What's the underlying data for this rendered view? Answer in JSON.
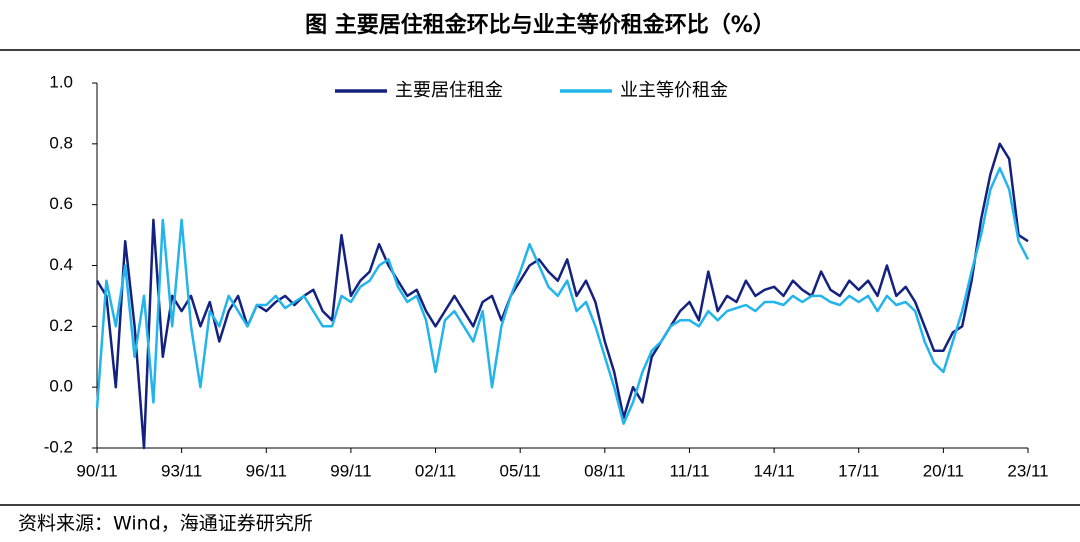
{
  "chart_data": {
    "type": "line",
    "title": "图 主要居住租金环比与业主等价租金环比（%）",
    "source": "资料来源：Wind，海通证券研究所",
    "categories": [
      "90/11",
      null,
      null,
      null,
      null,
      null,
      null,
      null,
      null,
      "93/11",
      null,
      null,
      null,
      null,
      null,
      null,
      null,
      null,
      "96/11",
      null,
      null,
      null,
      null,
      null,
      null,
      null,
      null,
      "99/11",
      null,
      null,
      null,
      null,
      null,
      null,
      null,
      null,
      "02/11",
      null,
      null,
      null,
      null,
      null,
      null,
      null,
      null,
      "05/11",
      null,
      null,
      null,
      null,
      null,
      null,
      null,
      null,
      "08/11",
      null,
      null,
      null,
      null,
      null,
      null,
      null,
      null,
      "11/11",
      null,
      null,
      null,
      null,
      null,
      null,
      null,
      null,
      "14/11",
      null,
      null,
      null,
      null,
      null,
      null,
      null,
      null,
      "17/11",
      null,
      null,
      null,
      null,
      null,
      null,
      null,
      null,
      "20/11",
      null,
      null,
      null,
      null,
      null,
      null,
      null,
      null,
      "23/11"
    ],
    "series": [
      {
        "name": "主要居住租金",
        "color": "#15217f",
        "values": [
          0.35,
          0.3,
          0.0,
          0.48,
          0.2,
          -0.2,
          0.55,
          0.1,
          0.3,
          0.25,
          0.3,
          0.2,
          0.28,
          0.15,
          0.25,
          0.3,
          0.2,
          0.27,
          0.25,
          0.28,
          0.3,
          0.27,
          0.3,
          0.32,
          0.25,
          0.22,
          0.5,
          0.3,
          0.35,
          0.38,
          0.47,
          0.4,
          0.35,
          0.3,
          0.32,
          0.25,
          0.2,
          0.25,
          0.3,
          0.25,
          0.2,
          0.28,
          0.3,
          0.22,
          0.3,
          0.35,
          0.4,
          0.42,
          0.38,
          0.35,
          0.42,
          0.3,
          0.35,
          0.28,
          0.15,
          0.05,
          -0.1,
          0.0,
          -0.05,
          0.1,
          0.15,
          0.2,
          0.25,
          0.28,
          0.22,
          0.38,
          0.25,
          0.3,
          0.28,
          0.35,
          0.3,
          0.32,
          0.33,
          0.3,
          0.35,
          0.32,
          0.3,
          0.38,
          0.32,
          0.3,
          0.35,
          0.32,
          0.35,
          0.3,
          0.4,
          0.3,
          0.33,
          0.28,
          0.2,
          0.12,
          0.12,
          0.18,
          0.2,
          0.35,
          0.55,
          0.7,
          0.8,
          0.75,
          0.5,
          0.48
        ]
      },
      {
        "name": "业主等价租金",
        "color": "#22b4ea",
        "values": [
          -0.07,
          0.35,
          0.2,
          0.4,
          0.1,
          0.3,
          -0.05,
          0.55,
          0.2,
          0.55,
          0.2,
          0.0,
          0.25,
          0.2,
          0.3,
          0.25,
          0.2,
          0.27,
          0.27,
          0.3,
          0.26,
          0.28,
          0.3,
          0.25,
          0.2,
          0.2,
          0.3,
          0.28,
          0.33,
          0.35,
          0.4,
          0.42,
          0.33,
          0.28,
          0.3,
          0.22,
          0.05,
          0.22,
          0.25,
          0.2,
          0.15,
          0.25,
          0.0,
          0.2,
          0.3,
          0.38,
          0.47,
          0.4,
          0.33,
          0.3,
          0.35,
          0.25,
          0.28,
          0.2,
          0.1,
          0.0,
          -0.12,
          -0.05,
          0.05,
          0.12,
          0.15,
          0.2,
          0.22,
          0.22,
          0.2,
          0.25,
          0.22,
          0.25,
          0.26,
          0.27,
          0.25,
          0.28,
          0.28,
          0.27,
          0.3,
          0.28,
          0.3,
          0.3,
          0.28,
          0.27,
          0.3,
          0.28,
          0.3,
          0.25,
          0.3,
          0.27,
          0.28,
          0.25,
          0.15,
          0.08,
          0.05,
          0.15,
          0.25,
          0.38,
          0.5,
          0.65,
          0.72,
          0.65,
          0.48,
          0.42
        ]
      }
    ],
    "ylim": [
      -0.2,
      1.0
    ],
    "yticks": [
      -0.2,
      {
        "value": 0,
        "label": "0.0"
      },
      0.2,
      0.4,
      0.6,
      0.8,
      {
        "value": 1,
        "label": "1.0"
      }
    ],
    "legend": "top"
  }
}
